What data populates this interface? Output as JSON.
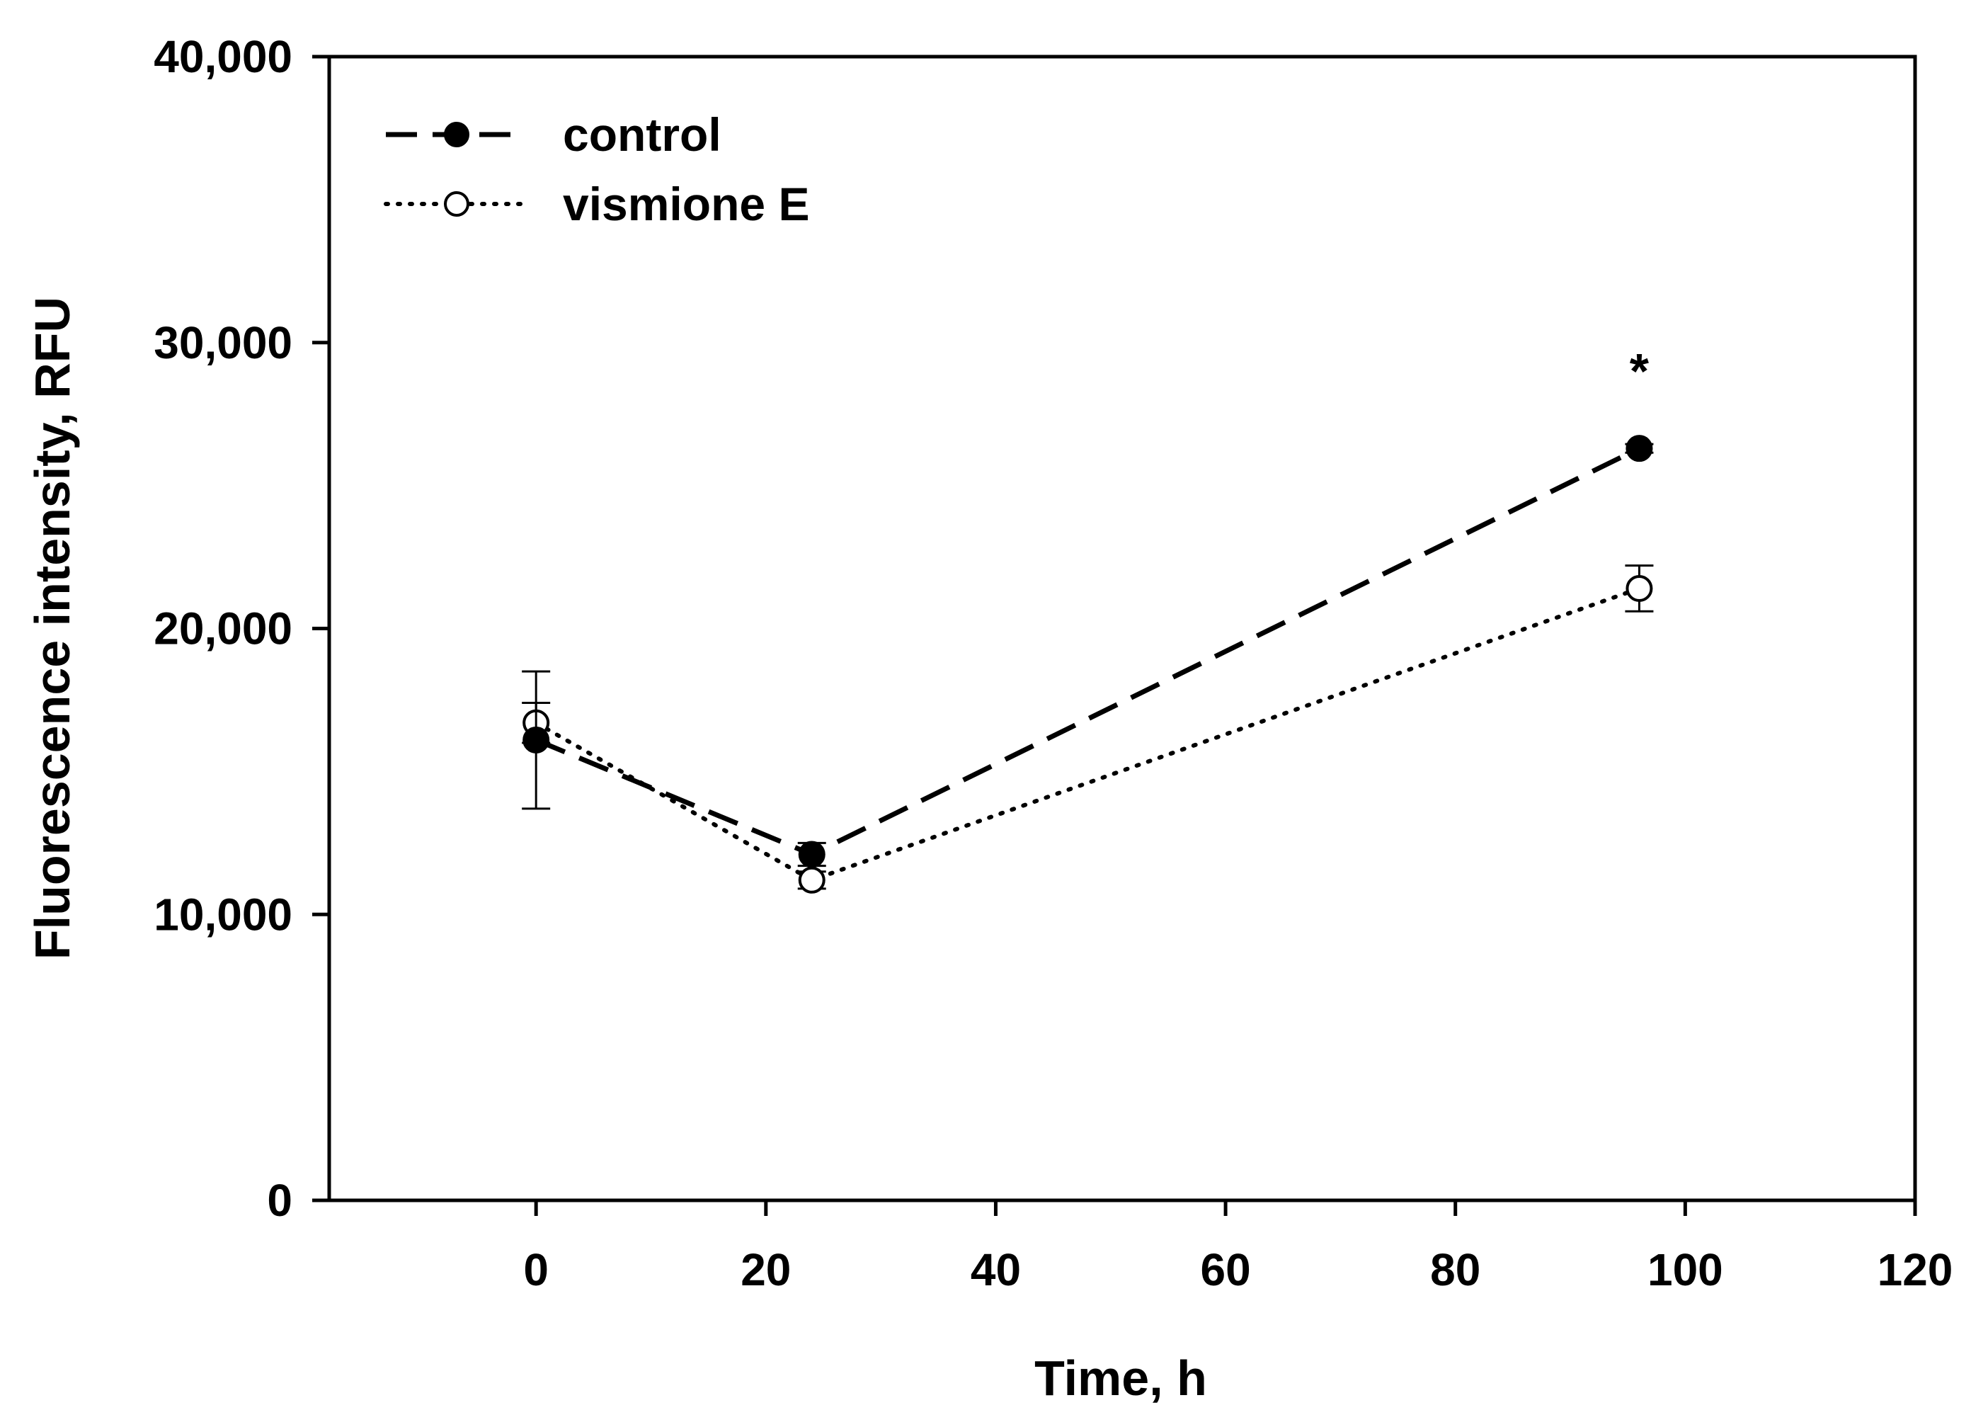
{
  "chart_data": {
    "type": "line",
    "title": "",
    "xlabel": "Time, h",
    "ylabel": "Fluorescence intensity, RFU",
    "xlim": [
      -18,
      120
    ],
    "ylim": [
      0,
      40000
    ],
    "xticks": [
      0,
      20,
      40,
      60,
      80,
      100,
      120
    ],
    "xtick_labels": [
      "0",
      "20",
      "40",
      "60",
      "80",
      "100",
      "120"
    ],
    "yticks": [
      0,
      10000,
      20000,
      30000,
      40000
    ],
    "ytick_labels": [
      "0",
      "10,000",
      "20,000",
      "30,000",
      "40,000"
    ],
    "grid": false,
    "legend_position": "top-left",
    "series": [
      {
        "name": "control",
        "line_style": "dashed",
        "marker": "filled-circle",
        "color": "#000000",
        "x": [
          0,
          24,
          96
        ],
        "y": [
          16100,
          12100,
          26300
        ],
        "err": [
          2400,
          400,
          150
        ]
      },
      {
        "name": "vismione E",
        "line_style": "dotted",
        "marker": "open-circle",
        "color": "#000000",
        "x": [
          0,
          24,
          96
        ],
        "y": [
          16700,
          11200,
          21400
        ],
        "err": [
          700,
          300,
          800
        ]
      }
    ],
    "annotations": [
      {
        "text": "*",
        "x": 96,
        "y": 29400
      }
    ]
  }
}
